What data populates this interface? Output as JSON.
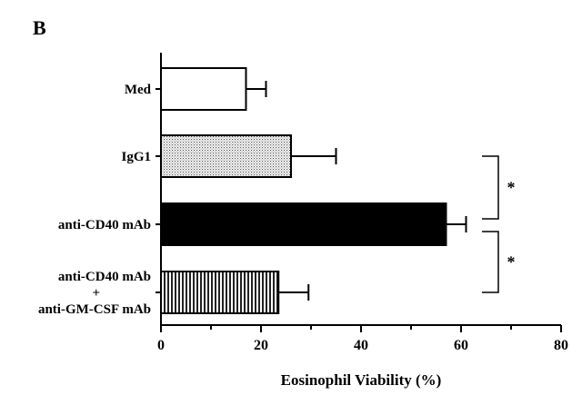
{
  "chart_data": {
    "type": "bar",
    "orientation": "horizontal",
    "panel_label": "B",
    "categories": [
      "Med",
      "IgG1",
      "anti-CD40 mAb",
      "anti-CD40 mAb\n+\nanti-GM-CSF mAb"
    ],
    "values": [
      17,
      26,
      57,
      23.5
    ],
    "error_plus": [
      4,
      9,
      4,
      6
    ],
    "bar_fills": [
      "white",
      "light-stipple",
      "black",
      "vertical-stripes"
    ],
    "xlabel": "Eosinophil Viability (%)",
    "ylabel": "",
    "xlim": [
      0,
      80
    ],
    "xticks": [
      0,
      20,
      40,
      60,
      80
    ],
    "grid": false,
    "significance": [
      {
        "between": [
          1,
          2
        ],
        "label": "*"
      },
      {
        "between": [
          2,
          3
        ],
        "label": "*"
      }
    ]
  }
}
